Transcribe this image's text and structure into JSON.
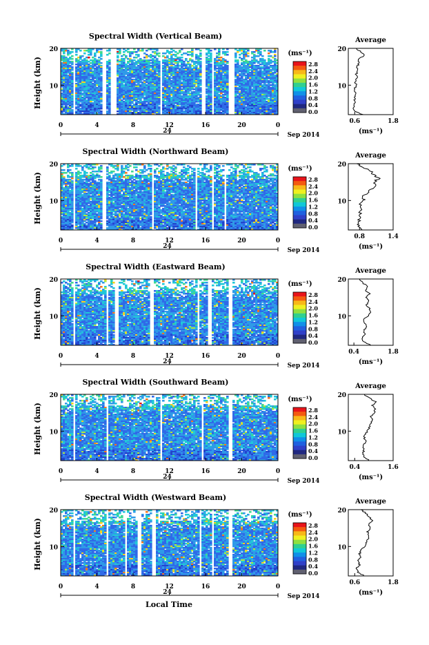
{
  "figure": {
    "xlabel": "Local Time",
    "date_label": "Sep 2014",
    "x_center_label": "24",
    "ylabel": "Height (km)",
    "avg_title": "Average",
    "avg_unit": "(ms⁻¹)",
    "colorbar_unit": "(ms⁻¹)",
    "colorbar_ticks": [
      "2.8",
      "2.4",
      "2.0",
      "1.6",
      "1.2",
      "0.8",
      "0.4",
      "0.0"
    ],
    "colorbar_colors": [
      "#e8141a",
      "#f45a10",
      "#f8b818",
      "#f0f020",
      "#90e040",
      "#30d090",
      "#10c8d8",
      "#1090e8",
      "#2060e0",
      "#3040c8",
      "#202880",
      "#606070"
    ]
  },
  "chart_data": [
    {
      "type": "heatmap",
      "title": "Spectral Width (Vertical Beam)",
      "xlabel": "Local Time",
      "ylabel": "Height (km)",
      "x_ticks": [
        "0",
        "4",
        "8",
        "12",
        "16",
        "20",
        "0"
      ],
      "y_ticks": [
        "20",
        "10"
      ],
      "xlim": [
        0,
        24
      ],
      "ylim": [
        2,
        20
      ],
      "colorbar": {
        "label": "(ms⁻¹)",
        "range": [
          0.0,
          3.0
        ]
      },
      "gaps_hours": [
        [
          1.3,
          1.7
        ],
        [
          4.6,
          5.1
        ],
        [
          5.6,
          6.1
        ],
        [
          10.9,
          11.2
        ],
        [
          15.6,
          16.0
        ],
        [
          16.7,
          17.0
        ],
        [
          18.6,
          19.1
        ]
      ],
      "average_profile": {
        "title": "Average",
        "xlabel": "(ms⁻¹)",
        "x_ticks": [
          "0.6",
          "1.8"
        ],
        "xlim": [
          0.4,
          1.8
        ],
        "y_ticks": [
          "20",
          "10"
        ],
        "height_km": [
          2,
          3,
          4,
          5,
          6,
          7,
          8,
          9,
          10,
          11,
          12,
          13,
          14,
          15,
          16,
          17,
          18,
          19,
          20
        ],
        "width": [
          0.85,
          0.6,
          0.55,
          0.6,
          0.6,
          0.62,
          0.62,
          0.6,
          0.65,
          0.62,
          0.68,
          0.65,
          0.7,
          0.66,
          0.75,
          0.7,
          0.9,
          0.8,
          0.65
        ]
      }
    },
    {
      "type": "heatmap",
      "title": "Spectral Width (Northward Beam)",
      "xlabel": "Local Time",
      "ylabel": "Height (km)",
      "x_ticks": [
        "0",
        "4",
        "8",
        "12",
        "16",
        "20",
        "0"
      ],
      "y_ticks": [
        "20",
        "10"
      ],
      "xlim": [
        0,
        24
      ],
      "ylim": [
        2,
        20
      ],
      "colorbar": {
        "label": "(ms⁻¹)",
        "range": [
          0.0,
          3.0
        ]
      },
      "gaps_hours": [
        [
          1.3,
          1.7
        ],
        [
          4.6,
          5.1
        ],
        [
          10.1,
          10.3
        ],
        [
          14.8,
          15.0
        ],
        [
          16.7,
          16.9
        ],
        [
          18.0,
          18.2
        ]
      ],
      "average_profile": {
        "title": "Average",
        "xlabel": "(ms⁻¹)",
        "x_ticks": [
          "0.8",
          "1.4"
        ],
        "xlim": [
          0.6,
          1.4
        ],
        "y_ticks": [
          "20",
          "10"
        ],
        "height_km": [
          2,
          3,
          4,
          5,
          6,
          7,
          8,
          9,
          10,
          11,
          12,
          13,
          14,
          15,
          16,
          17,
          18,
          19,
          20
        ],
        "width": [
          0.85,
          0.8,
          0.78,
          0.8,
          0.8,
          0.82,
          0.85,
          0.82,
          0.88,
          0.85,
          0.95,
          1.0,
          1.1,
          1.05,
          1.15,
          1.05,
          1.0,
          0.85,
          0.75
        ]
      }
    },
    {
      "type": "heatmap",
      "title": "Spectral Width (Eastward Beam)",
      "xlabel": "Local Time",
      "ylabel": "Height (km)",
      "x_ticks": [
        "0",
        "4",
        "8",
        "12",
        "16",
        "20",
        "0"
      ],
      "y_ticks": [
        "20",
        "10"
      ],
      "xlim": [
        0,
        24
      ],
      "ylim": [
        2,
        20
      ],
      "colorbar": {
        "label": "(ms⁻¹)",
        "range": [
          0.0,
          3.0
        ]
      },
      "gaps_hours": [
        [
          1.3,
          1.7
        ],
        [
          5.0,
          5.3
        ],
        [
          6.0,
          6.3
        ],
        [
          9.8,
          10.2
        ],
        [
          15.0,
          15.3
        ],
        [
          16.3,
          16.7
        ],
        [
          18.6,
          19.0
        ]
      ],
      "average_profile": {
        "title": "Average",
        "xlabel": "(ms⁻¹)",
        "x_ticks": [
          "0.4",
          "1.8"
        ],
        "xlim": [
          0.2,
          1.8
        ],
        "y_ticks": [
          "20",
          "10"
        ],
        "height_km": [
          2,
          3,
          4,
          5,
          6,
          7,
          8,
          9,
          10,
          11,
          12,
          13,
          14,
          15,
          16,
          17,
          18,
          19,
          20
        ],
        "width": [
          1.0,
          0.75,
          0.7,
          0.8,
          0.75,
          0.85,
          0.8,
          0.75,
          0.9,
          1.0,
          0.95,
          0.85,
          0.95,
          0.85,
          0.95,
          0.8,
          0.9,
          0.7,
          0.6
        ]
      }
    },
    {
      "type": "heatmap",
      "title": "Spectral Width (Southward Beam)",
      "xlabel": "Local Time",
      "ylabel": "Height (km)",
      "x_ticks": [
        "0",
        "4",
        "8",
        "12",
        "16",
        "20",
        "0"
      ],
      "y_ticks": [
        "20",
        "10"
      ],
      "xlim": [
        0,
        24
      ],
      "ylim": [
        2,
        20
      ],
      "colorbar": {
        "label": "(ms⁻¹)",
        "range": [
          0.0,
          3.0
        ]
      },
      "gaps_hours": [
        [
          1.3,
          1.6
        ],
        [
          5.0,
          5.3
        ],
        [
          11.0,
          11.2
        ],
        [
          15.5,
          15.8
        ],
        [
          18.6,
          18.9
        ]
      ],
      "average_profile": {
        "title": "Average",
        "xlabel": "(ms⁻¹)",
        "x_ticks": [
          "0.4",
          "1.6"
        ],
        "xlim": [
          0.2,
          1.6
        ],
        "y_ticks": [
          "20",
          "10"
        ],
        "height_km": [
          2,
          3,
          4,
          5,
          6,
          7,
          8,
          9,
          10,
          11,
          12,
          13,
          14,
          15,
          16,
          17,
          18,
          19,
          20
        ],
        "width": [
          0.85,
          0.7,
          0.65,
          0.7,
          0.65,
          0.75,
          0.7,
          0.72,
          0.8,
          0.85,
          0.9,
          0.95,
          0.9,
          1.0,
          1.05,
          0.95,
          1.05,
          0.85,
          0.7
        ]
      }
    },
    {
      "type": "heatmap",
      "title": "Spectral Width (Westward Beam)",
      "xlabel": "Local Time",
      "ylabel": "Height (km)",
      "x_ticks": [
        "0",
        "4",
        "8",
        "12",
        "16",
        "20",
        "0"
      ],
      "y_ticks": [
        "20",
        "10"
      ],
      "xlim": [
        0,
        24
      ],
      "ylim": [
        2,
        20
      ],
      "colorbar": {
        "label": "(ms⁻¹)",
        "range": [
          0.0,
          3.0
        ]
      },
      "gaps_hours": [
        [
          1.3,
          1.7
        ],
        [
          5.0,
          5.3
        ],
        [
          7.0,
          7.2
        ],
        [
          8.5,
          8.8
        ],
        [
          10.1,
          10.4
        ],
        [
          15.3,
          15.6
        ],
        [
          16.8,
          17.0
        ],
        [
          18.6,
          19.0
        ]
      ],
      "average_profile": {
        "title": "Average",
        "xlabel": "(ms⁻¹)",
        "x_ticks": [
          "0.6",
          "1.8"
        ],
        "xlim": [
          0.4,
          1.8
        ],
        "y_ticks": [
          "20",
          "10"
        ],
        "height_km": [
          2,
          3,
          4,
          5,
          6,
          7,
          8,
          9,
          10,
          11,
          12,
          13,
          14,
          15,
          16,
          17,
          18,
          19,
          20
        ],
        "width": [
          0.9,
          0.7,
          0.65,
          0.75,
          0.7,
          0.78,
          0.75,
          0.8,
          0.9,
          0.95,
          1.0,
          1.05,
          1.0,
          1.1,
          1.05,
          1.15,
          1.05,
          0.95,
          0.8
        ]
      }
    }
  ]
}
